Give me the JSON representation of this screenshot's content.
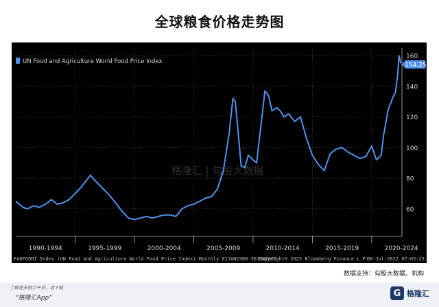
{
  "title": "全球粮食价格走势图",
  "source": "数据支持：勾股大数据、机构",
  "watermark": "格隆汇 | 勾股大数据",
  "footer": {
    "note": "了解更多图文干货，请下载",
    "app": "“格隆汇App”",
    "logo_text": "格隆汇"
  },
  "colors": {
    "line": "#4f93ec",
    "background": "#000000",
    "label": "#d9d9d9"
  },
  "chart_data": {
    "type": "line",
    "title": "全球粮食价格走势图",
    "legend": "UN Food and Agriculture World Food Price Index",
    "legend_position": "top-left",
    "last_value_label": "154.25",
    "ylim": [
      42,
      165
    ],
    "yticks": [
      60,
      80,
      100,
      120,
      140,
      160
    ],
    "xlim": [
      1990,
      2022.55
    ],
    "xtick_labels": [
      "1990-1994",
      "1995-1999",
      "2000-2004",
      "2005-2009",
      "2010-2014",
      "2015-2019",
      "2020-2024"
    ],
    "xtick_positions": [
      1992.5,
      1997.5,
      2002.5,
      2007.5,
      2012.5,
      2017.5,
      2022.5
    ],
    "grid": true,
    "info_left": "FAOFOODI Index (UN Food and Agriculture World Food Price Index)  Monthly 01JAN1980-30JUN2022",
    "info_mid": "Copyright® 2022 Bloomberg Finance L.P.",
    "info_right": "08-Jul-2022 07:05:23",
    "series": [
      {
        "name": "UN Food and Agriculture World Food Price Index",
        "x": [
          1990.0,
          1990.3,
          1990.6,
          1991.0,
          1991.5,
          1992.0,
          1992.5,
          1993.0,
          1993.5,
          1994.0,
          1994.5,
          1995.0,
          1995.5,
          1996.0,
          1996.3,
          1996.6,
          1997.0,
          1997.5,
          1998.0,
          1998.5,
          1999.0,
          1999.5,
          2000.0,
          2000.5,
          2001.0,
          2001.5,
          2002.0,
          2002.5,
          2003.0,
          2003.5,
          2004.0,
          2004.5,
          2005.0,
          2005.5,
          2006.0,
          2006.5,
          2007.0,
          2007.5,
          2008.0,
          2008.3,
          2008.5,
          2008.8,
          2009.0,
          2009.3,
          2009.6,
          2010.0,
          2010.3,
          2010.6,
          2011.0,
          2011.3,
          2011.6,
          2012.0,
          2012.3,
          2012.6,
          2013.0,
          2013.5,
          2014.0,
          2014.5,
          2015.0,
          2015.5,
          2016.0,
          2016.5,
          2017.0,
          2017.5,
          2018.0,
          2018.5,
          2019.0,
          2019.5,
          2020.0,
          2020.4,
          2020.8,
          2021.0,
          2021.4,
          2021.8,
          2022.0,
          2022.2,
          2022.3,
          2022.45
        ],
        "values": [
          65,
          63,
          61,
          60,
          62,
          61,
          63,
          66,
          63,
          64,
          66,
          70,
          74,
          79,
          82,
          79,
          76,
          72,
          68,
          63,
          58,
          54,
          53,
          54,
          55,
          54,
          55,
          56,
          56,
          55,
          60,
          62,
          63,
          65,
          67,
          68,
          73,
          85,
          110,
          132,
          130,
          105,
          88,
          87,
          95,
          92,
          90,
          110,
          137,
          134,
          124,
          126,
          124,
          120,
          122,
          117,
          120,
          106,
          95,
          89,
          85,
          96,
          99,
          100,
          97,
          95,
          93,
          94,
          101,
          92,
          95,
          108,
          125,
          133,
          136,
          148,
          160,
          155
        ]
      }
    ]
  }
}
